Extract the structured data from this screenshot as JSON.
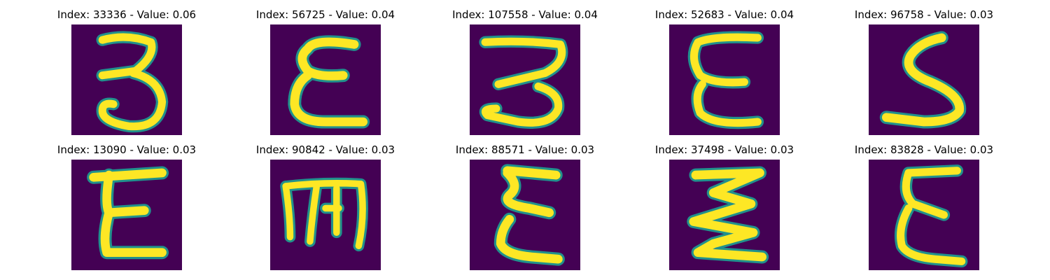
{
  "figure": {
    "panels": [
      {
        "title": "Index: 33336 - Value: 0.06",
        "glyph": "handwritten-3-icon"
      },
      {
        "title": "Index: 56725 - Value: 0.04",
        "glyph": "handwritten-epsilon-icon"
      },
      {
        "title": "Index: 107558 - Value: 0.04",
        "glyph": "handwritten-3-icon"
      },
      {
        "title": "Index: 52683 - Value: 0.04",
        "glyph": "handwritten-epsilon-icon"
      },
      {
        "title": "Index: 96758 - Value: 0.03",
        "glyph": "handwritten-s-icon"
      },
      {
        "title": "Index: 13090 - Value: 0.03",
        "glyph": "handwritten-epsilon-icon"
      },
      {
        "title": "Index: 90842 - Value: 0.03",
        "glyph": "handwritten-m-icon"
      },
      {
        "title": "Index: 88571 - Value: 0.03",
        "glyph": "handwritten-sigma-icon"
      },
      {
        "title": "Index: 37498 - Value: 0.03",
        "glyph": "handwritten-zigzag-icon"
      },
      {
        "title": "Index: 83828 - Value: 0.03",
        "glyph": "handwritten-epsilon-icon"
      }
    ],
    "colors": {
      "background": "#440154",
      "stroke_edge": "#21918c",
      "stroke_core": "#fde725"
    }
  }
}
